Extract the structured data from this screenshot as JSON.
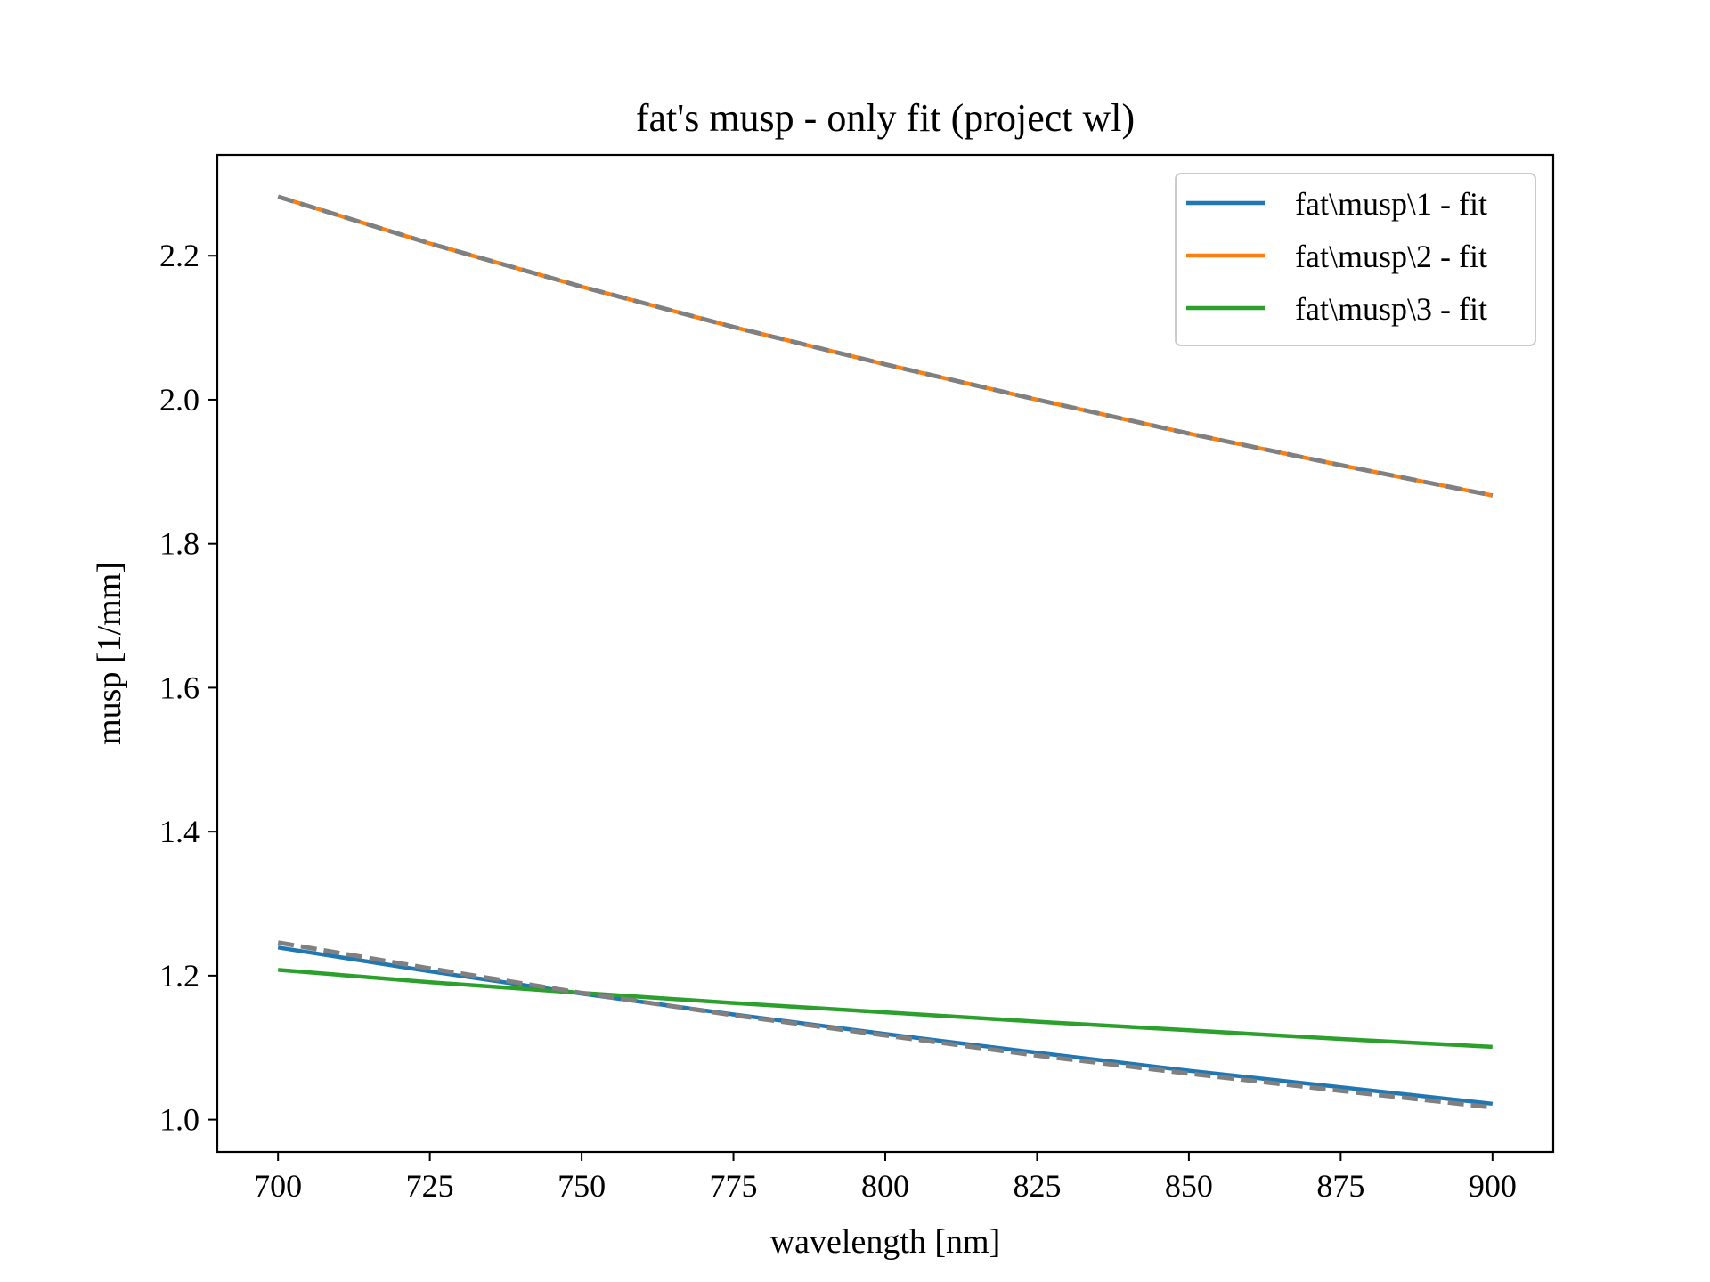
{
  "chart_data": {
    "type": "line",
    "title": "fat's musp - only fit (project wl)",
    "xlabel": "wavelength [nm]",
    "ylabel": "musp [1/mm]",
    "xlim": [
      690,
      910
    ],
    "ylim": [
      0.955,
      2.34
    ],
    "xticks": [
      700,
      725,
      750,
      775,
      800,
      825,
      850,
      875,
      900
    ],
    "xtick_labels": [
      "700",
      "725",
      "750",
      "775",
      "800",
      "825",
      "850",
      "875",
      "900"
    ],
    "yticks": [
      1.0,
      1.2,
      1.4,
      1.6,
      1.8,
      2.0,
      2.2
    ],
    "ytick_labels": [
      "1.0",
      "1.2",
      "1.4",
      "1.6",
      "1.8",
      "2.0",
      "2.2"
    ],
    "grid": false,
    "legend_position": "top-right",
    "x": [
      700,
      725,
      750,
      775,
      800,
      825,
      850,
      875,
      900
    ],
    "series": [
      {
        "name": "fat\\musp\\1 - fit",
        "color": "#1f77b4",
        "style": "solid",
        "values": [
          1.239,
          1.206,
          1.175,
          1.146,
          1.119,
          1.093,
          1.068,
          1.045,
          1.022
        ]
      },
      {
        "name": "fat\\musp\\2 - fit",
        "color": "#ff7f0e",
        "style": "solid",
        "values": [
          2.282,
          2.217,
          2.157,
          2.101,
          2.049,
          2.0,
          1.953,
          1.909,
          1.867
        ]
      },
      {
        "name": "fat\\musp\\3 - fit",
        "color": "#2ca02c",
        "style": "solid",
        "values": [
          1.208,
          1.191,
          1.176,
          1.162,
          1.149,
          1.136,
          1.124,
          1.112,
          1.101
        ]
      },
      {
        "color": "#808080",
        "style": "dashed",
        "values": [
          1.246,
          1.21,
          1.176,
          1.145,
          1.117,
          1.089,
          1.064,
          1.04,
          1.017
        ]
      },
      {
        "color": "#808080",
        "style": "dashed",
        "values": [
          2.282,
          2.217,
          2.157,
          2.101,
          2.049,
          2.0,
          1.953,
          1.909,
          1.867
        ]
      }
    ]
  }
}
